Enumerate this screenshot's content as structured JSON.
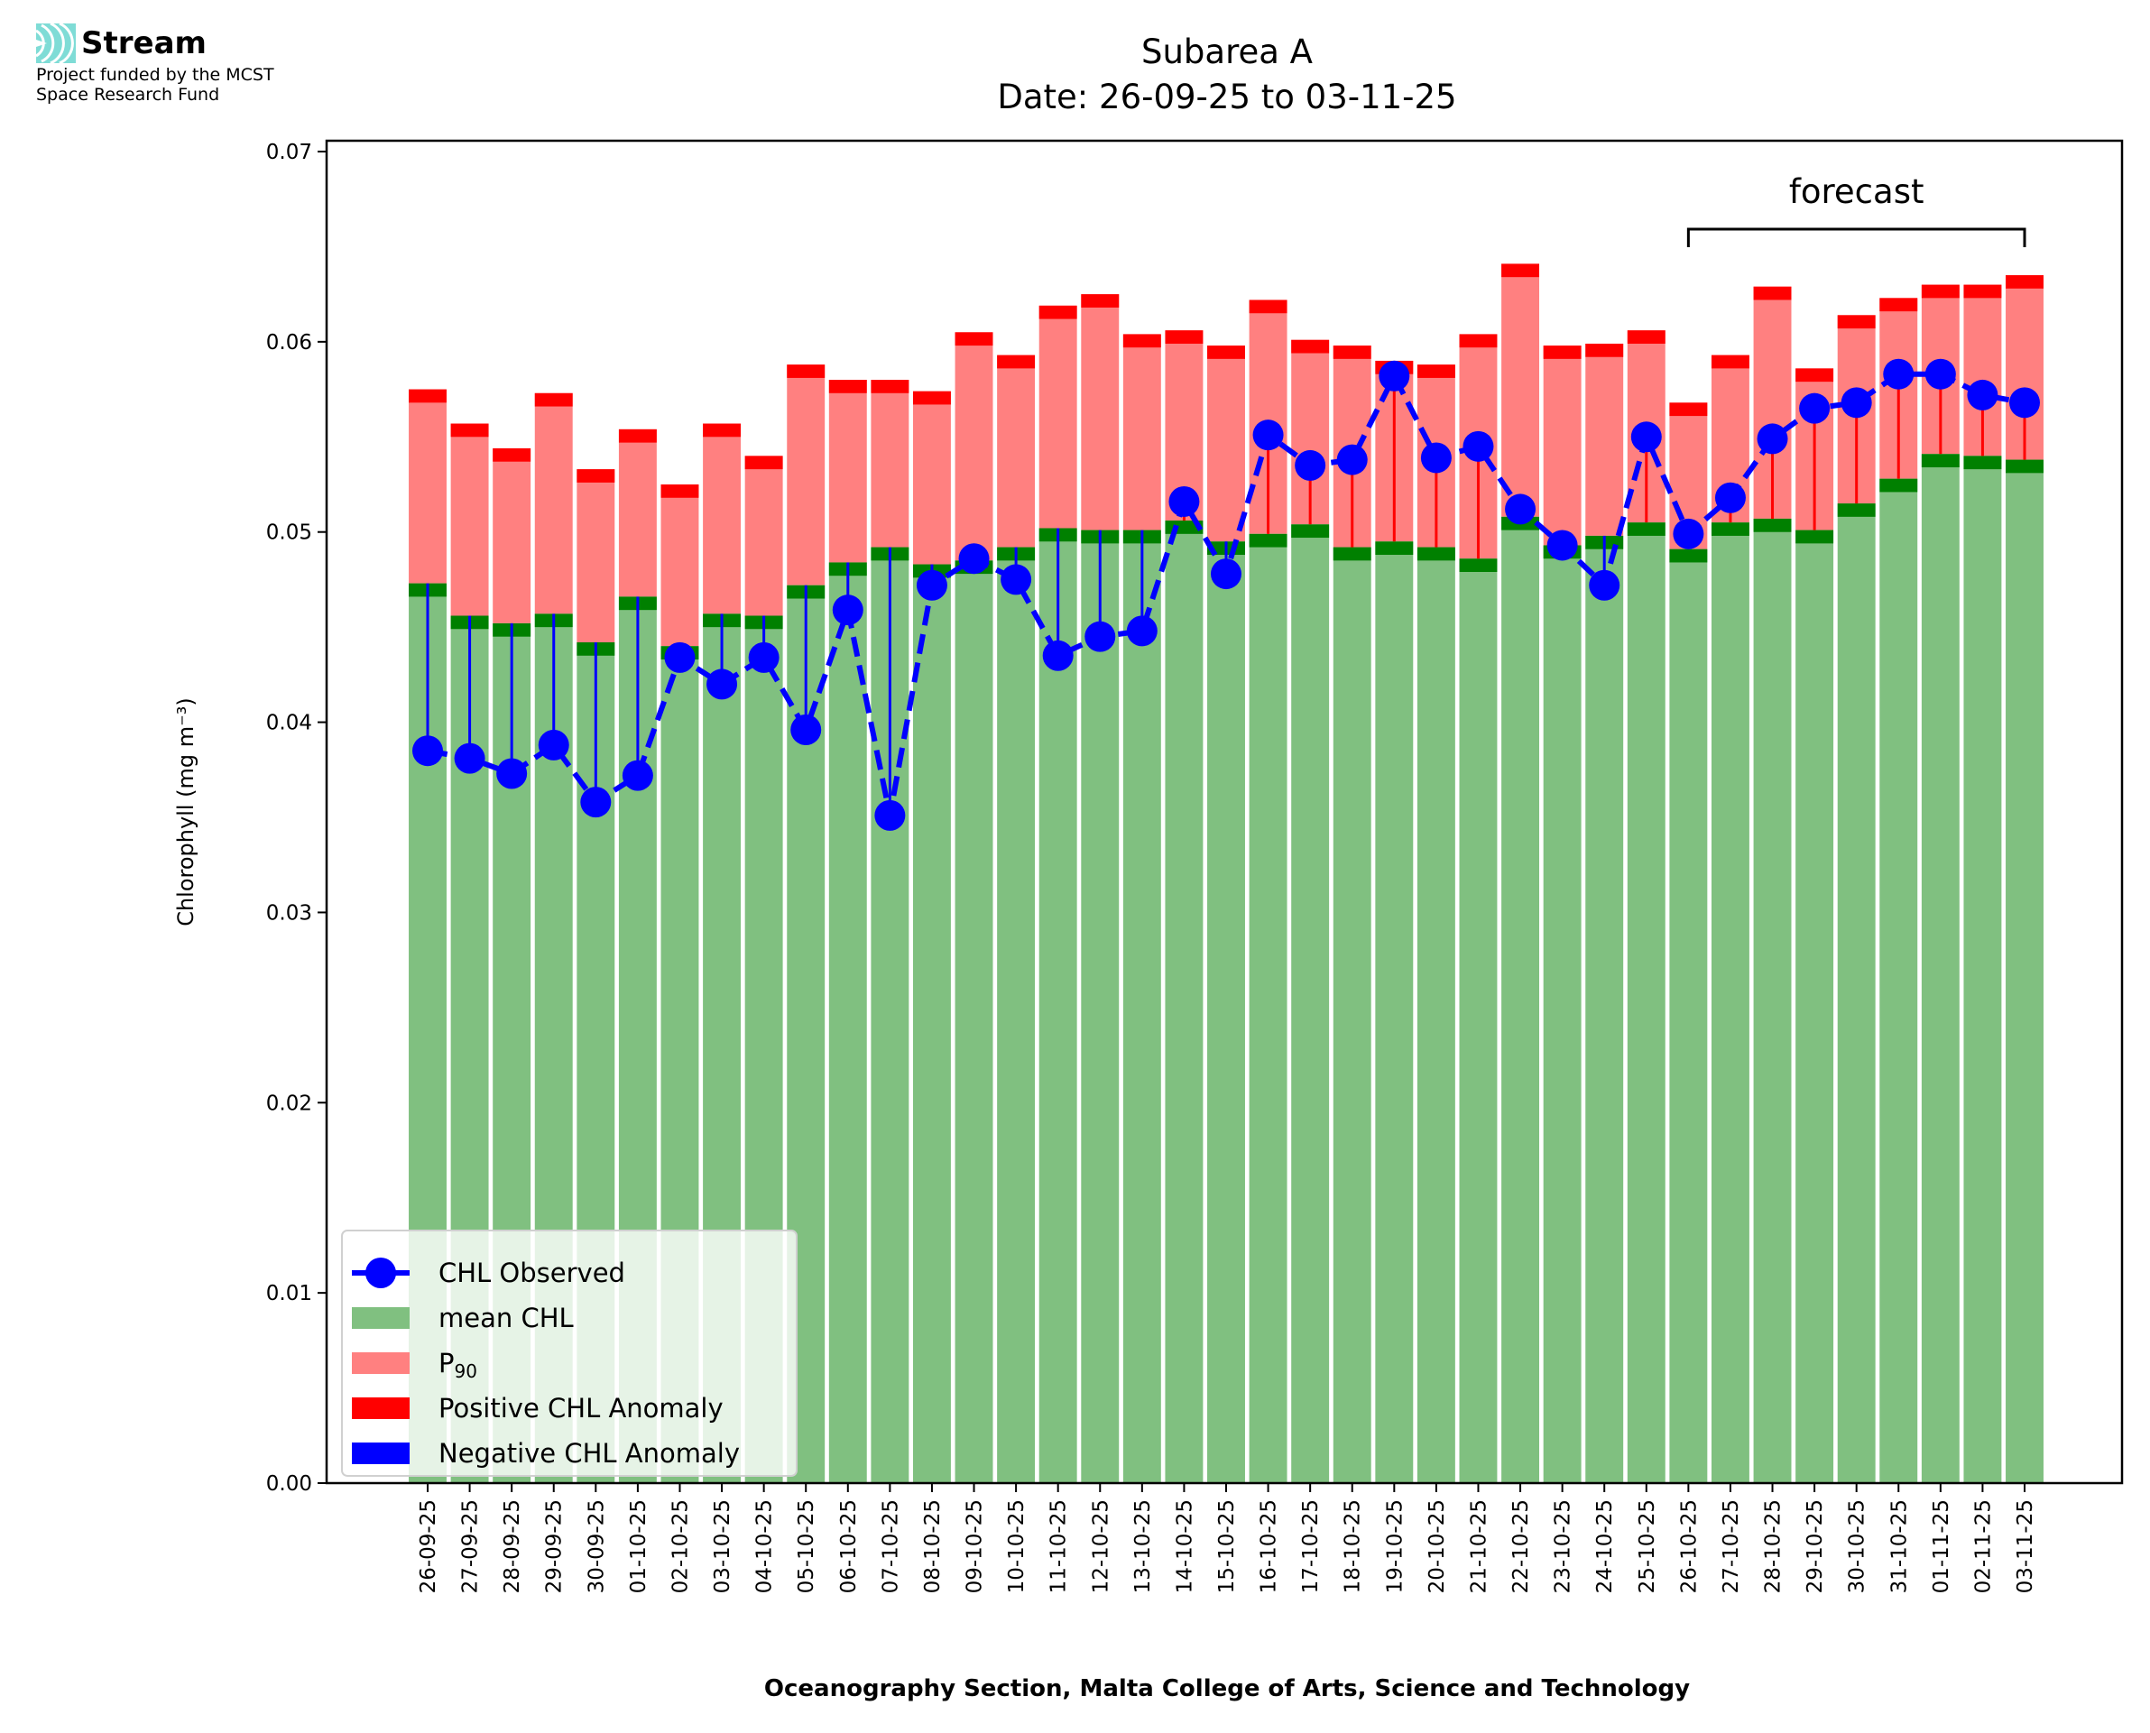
{
  "logo": {
    "name": "Stream",
    "line1": "Project funded by the MCST",
    "line2": "Space Research Fund",
    "color": "#7fdcd6"
  },
  "chart_data": {
    "type": "bar",
    "title": "Subarea A",
    "subtitle": "Date: 26-09-25 to 03-11-25",
    "xlabel": "Oceanography Section, Malta College of Arts, Science and Technology",
    "ylabel": "Chlorophyll (mg m⁻³)",
    "ylim": [
      0,
      0.07
    ],
    "yticks": [
      "0.00",
      "0.01",
      "0.02",
      "0.03",
      "0.04",
      "0.05",
      "0.06",
      "0.07"
    ],
    "annotation": {
      "text": "forecast",
      "from": "26-10-25",
      "to": "03-11-25"
    },
    "legend_placement": "lower-left",
    "colors": {
      "mean": "#80c080",
      "mean_edge": "#008000",
      "p90": "#ff8080",
      "positive": "#ff0000",
      "negative": "#0000ff",
      "observed": "#0000ff"
    },
    "legend": [
      "CHL Observed",
      "mean CHL",
      "P90",
      "Positive CHL Anomaly",
      "Negative CHL Anomaly"
    ],
    "categories": [
      "26-09-25",
      "27-09-25",
      "28-09-25",
      "29-09-25",
      "30-09-25",
      "01-10-25",
      "02-10-25",
      "03-10-25",
      "04-10-25",
      "05-10-25",
      "06-10-25",
      "07-10-25",
      "08-10-25",
      "09-10-25",
      "10-10-25",
      "11-10-25",
      "12-10-25",
      "13-10-25",
      "14-10-25",
      "15-10-25",
      "16-10-25",
      "17-10-25",
      "18-10-25",
      "19-10-25",
      "20-10-25",
      "21-10-25",
      "22-10-25",
      "23-10-25",
      "24-10-25",
      "25-10-25",
      "26-10-25",
      "27-10-25",
      "28-10-25",
      "29-10-25",
      "30-10-25",
      "31-10-25",
      "01-11-25",
      "02-11-25",
      "03-11-25"
    ],
    "series": [
      {
        "name": "mean CHL",
        "values": [
          0.0473,
          0.0456,
          0.0452,
          0.0457,
          0.0442,
          0.0466,
          0.044,
          0.0457,
          0.0456,
          0.0472,
          0.0484,
          0.0492,
          0.0483,
          0.0485,
          0.0492,
          0.0502,
          0.0501,
          0.0501,
          0.0506,
          0.0495,
          0.0499,
          0.0504,
          0.0492,
          0.0495,
          0.0492,
          0.0486,
          0.0508,
          0.0493,
          0.0498,
          0.0505,
          0.0491,
          0.0505,
          0.0507,
          0.0501,
          0.0515,
          0.0528,
          0.0541,
          0.054,
          0.0538
        ]
      },
      {
        "name": "P90",
        "values": [
          0.0575,
          0.0557,
          0.0544,
          0.0573,
          0.0533,
          0.0554,
          0.0525,
          0.0557,
          0.054,
          0.0588,
          0.058,
          0.058,
          0.0574,
          0.0605,
          0.0593,
          0.0619,
          0.0625,
          0.0604,
          0.0606,
          0.0598,
          0.0622,
          0.0601,
          0.0598,
          0.059,
          0.0588,
          0.0604,
          0.0641,
          0.0598,
          0.0599,
          0.0606,
          0.0568,
          0.0593,
          0.0629,
          0.0586,
          0.0614,
          0.0623,
          0.063,
          0.063,
          0.0635
        ]
      },
      {
        "name": "CHL Observed",
        "values": [
          0.0385,
          0.0381,
          0.0373,
          0.0388,
          0.0358,
          0.0372,
          0.0434,
          0.042,
          0.0434,
          0.0396,
          0.0459,
          0.0351,
          0.0472,
          0.0486,
          0.0475,
          0.0435,
          0.0445,
          0.0448,
          0.0516,
          0.0478,
          0.0551,
          0.0535,
          0.0538,
          0.0582,
          0.0539,
          0.0545,
          0.0512,
          0.0493,
          0.0472,
          0.055,
          0.0499,
          0.0518,
          0.0549,
          0.0565,
          0.0568,
          0.0583,
          0.0583,
          0.0572,
          0.0568
        ]
      }
    ]
  }
}
